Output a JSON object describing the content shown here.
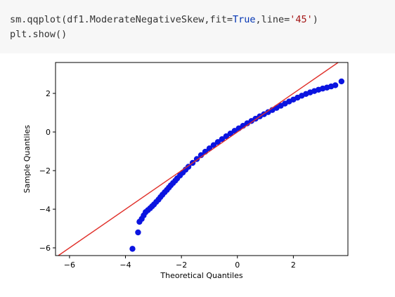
{
  "code": {
    "line1": {
      "pre": "sm.qqplot(df1.ModerateNegativeSkew,fit=",
      "kw": "True",
      "mid": ",line=",
      "str": "'45'",
      "post": ")"
    },
    "line2": "plt.show()"
  },
  "chart_data": {
    "type": "scatter",
    "title": "",
    "xlabel": "Theoretical Quantiles",
    "ylabel": "Sample Quantiles",
    "xlim": [
      -6.5,
      3.95
    ],
    "ylim": [
      -6.4,
      3.6
    ],
    "xticks": [
      -6,
      -4,
      -2,
      0,
      2
    ],
    "yticks": [
      -6,
      -4,
      -2,
      0,
      2
    ],
    "xtick_labels": [
      "−6",
      "−4",
      "−2",
      "0",
      "2"
    ],
    "ytick_labels": [
      "−6",
      "−4",
      "−2",
      "0",
      "2"
    ],
    "grid": false,
    "reference_line": {
      "kind": "45-degree",
      "color": "#e0302a"
    },
    "series": [
      {
        "color": "#0b14e0",
        "x": [
          -3.75,
          -3.55,
          -3.5,
          -3.42,
          -3.35,
          -3.28,
          -3.2,
          -3.12,
          -3.05,
          -2.98,
          -2.9,
          -2.82,
          -2.75,
          -2.68,
          -2.6,
          -2.52,
          -2.45,
          -2.38,
          -2.3,
          -2.22,
          -2.15,
          -2.05,
          -1.95,
          -1.85,
          -1.75,
          -1.6,
          -1.45,
          -1.3,
          -1.15,
          -1.0,
          -0.85,
          -0.7,
          -0.55,
          -0.4,
          -0.25,
          -0.1,
          0.05,
          0.2,
          0.35,
          0.5,
          0.65,
          0.8,
          0.95,
          1.1,
          1.25,
          1.4,
          1.55,
          1.7,
          1.85,
          2.0,
          2.15,
          2.3,
          2.45,
          2.6,
          2.75,
          2.9,
          3.05,
          3.2,
          3.35,
          3.5,
          3.72
        ],
        "y": [
          -6.05,
          -5.2,
          -4.65,
          -4.5,
          -4.32,
          -4.15,
          -4.05,
          -3.95,
          -3.85,
          -3.75,
          -3.62,
          -3.5,
          -3.37,
          -3.25,
          -3.12,
          -3.0,
          -2.88,
          -2.76,
          -2.64,
          -2.52,
          -2.4,
          -2.25,
          -2.1,
          -1.95,
          -1.8,
          -1.6,
          -1.4,
          -1.2,
          -1.02,
          -0.85,
          -0.68,
          -0.52,
          -0.37,
          -0.22,
          -0.08,
          0.06,
          0.19,
          0.32,
          0.45,
          0.57,
          0.69,
          0.81,
          0.92,
          1.03,
          1.14,
          1.25,
          1.36,
          1.47,
          1.58,
          1.68,
          1.78,
          1.88,
          1.97,
          2.05,
          2.12,
          2.19,
          2.25,
          2.3,
          2.36,
          2.42,
          2.62
        ]
      }
    ]
  }
}
